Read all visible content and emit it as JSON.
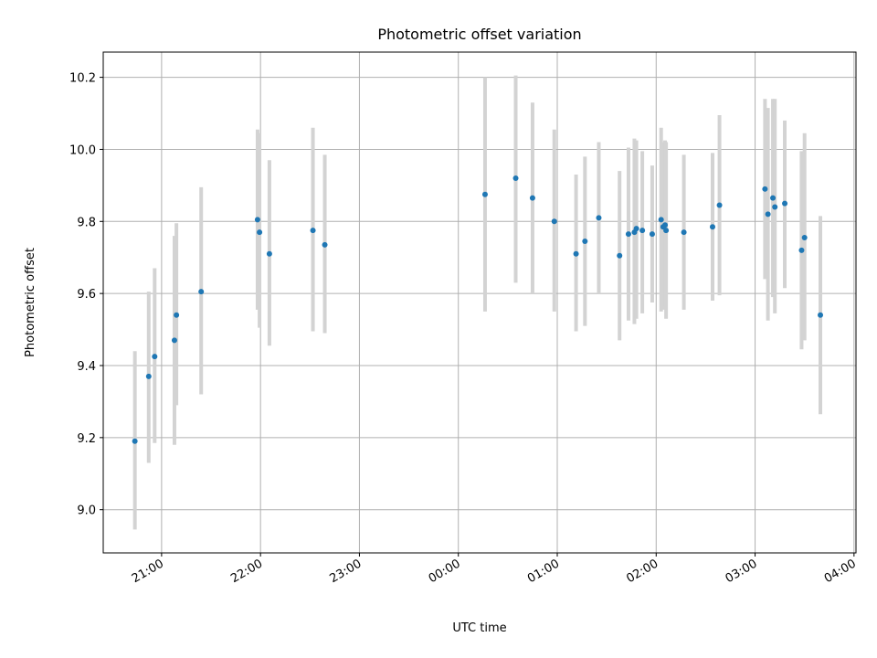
{
  "chart_data": {
    "type": "scatter",
    "title": "Photometric offset variation",
    "xlabel": "UTC time",
    "ylabel": "Photometric offset",
    "x_unit": "hours",
    "x_tick_labels": [
      "21:00",
      "22:00",
      "23:00",
      "00:00",
      "01:00",
      "02:00",
      "03:00",
      "04:00"
    ],
    "x_tick_values": [
      21,
      22,
      23,
      24,
      25,
      26,
      27,
      28
    ],
    "xlim": [
      20.41,
      28.02
    ],
    "y_tick_values": [
      9.0,
      9.2,
      9.4,
      9.6,
      9.8,
      10.0,
      10.2
    ],
    "ylim": [
      8.88,
      10.27
    ],
    "grid": true,
    "marker_color": "#1f77b4",
    "errorbar_color": "#d3d3d3",
    "points": [
      {
        "x": 20.73,
        "y": 9.19,
        "yerr_low": 8.945,
        "yerr_high": 9.44
      },
      {
        "x": 20.87,
        "y": 9.37,
        "yerr_low": 9.13,
        "yerr_high": 9.605
      },
      {
        "x": 20.93,
        "y": 9.425,
        "yerr_low": 9.185,
        "yerr_high": 9.67
      },
      {
        "x": 21.13,
        "y": 9.47,
        "yerr_low": 9.18,
        "yerr_high": 9.76
      },
      {
        "x": 21.15,
        "y": 9.54,
        "yerr_low": 9.29,
        "yerr_high": 9.795
      },
      {
        "x": 21.4,
        "y": 9.605,
        "yerr_low": 9.32,
        "yerr_high": 9.895
      },
      {
        "x": 21.97,
        "y": 9.805,
        "yerr_low": 9.555,
        "yerr_high": 10.055
      },
      {
        "x": 21.99,
        "y": 9.77,
        "yerr_low": 9.505,
        "yerr_high": 10.045
      },
      {
        "x": 22.09,
        "y": 9.71,
        "yerr_low": 9.455,
        "yerr_high": 9.97
      },
      {
        "x": 22.53,
        "y": 9.775,
        "yerr_low": 9.495,
        "yerr_high": 10.06
      },
      {
        "x": 22.65,
        "y": 9.735,
        "yerr_low": 9.49,
        "yerr_high": 9.985
      },
      {
        "x": 24.27,
        "y": 9.875,
        "yerr_low": 9.55,
        "yerr_high": 10.2
      },
      {
        "x": 24.58,
        "y": 9.92,
        "yerr_low": 9.63,
        "yerr_high": 10.205
      },
      {
        "x": 24.75,
        "y": 9.865,
        "yerr_low": 9.6,
        "yerr_high": 10.13
      },
      {
        "x": 24.97,
        "y": 9.8,
        "yerr_low": 9.55,
        "yerr_high": 10.055
      },
      {
        "x": 25.19,
        "y": 9.71,
        "yerr_low": 9.495,
        "yerr_high": 9.93
      },
      {
        "x": 25.28,
        "y": 9.745,
        "yerr_low": 9.51,
        "yerr_high": 9.98
      },
      {
        "x": 25.42,
        "y": 9.81,
        "yerr_low": 9.6,
        "yerr_high": 10.02
      },
      {
        "x": 25.63,
        "y": 9.705,
        "yerr_low": 9.47,
        "yerr_high": 9.94
      },
      {
        "x": 25.72,
        "y": 9.765,
        "yerr_low": 9.525,
        "yerr_high": 10.005
      },
      {
        "x": 25.78,
        "y": 9.77,
        "yerr_low": 9.515,
        "yerr_high": 10.03
      },
      {
        "x": 25.8,
        "y": 9.78,
        "yerr_low": 9.53,
        "yerr_high": 10.025
      },
      {
        "x": 25.86,
        "y": 9.775,
        "yerr_low": 9.545,
        "yerr_high": 9.995
      },
      {
        "x": 25.96,
        "y": 9.765,
        "yerr_low": 9.575,
        "yerr_high": 9.955
      },
      {
        "x": 26.05,
        "y": 9.805,
        "yerr_low": 9.55,
        "yerr_high": 10.06
      },
      {
        "x": 26.07,
        "y": 9.785,
        "yerr_low": 9.555,
        "yerr_high": 10.02
      },
      {
        "x": 26.09,
        "y": 9.79,
        "yerr_low": 9.565,
        "yerr_high": 10.025
      },
      {
        "x": 26.1,
        "y": 9.775,
        "yerr_low": 9.53,
        "yerr_high": 10.02
      },
      {
        "x": 26.28,
        "y": 9.77,
        "yerr_low": 9.555,
        "yerr_high": 9.985
      },
      {
        "x": 26.57,
        "y": 9.785,
        "yerr_low": 9.58,
        "yerr_high": 9.99
      },
      {
        "x": 26.64,
        "y": 9.845,
        "yerr_low": 9.595,
        "yerr_high": 10.095
      },
      {
        "x": 27.1,
        "y": 9.89,
        "yerr_low": 9.64,
        "yerr_high": 10.14
      },
      {
        "x": 27.13,
        "y": 9.82,
        "yerr_low": 9.525,
        "yerr_high": 10.115
      },
      {
        "x": 27.18,
        "y": 9.865,
        "yerr_low": 9.59,
        "yerr_high": 10.14
      },
      {
        "x": 27.2,
        "y": 9.84,
        "yerr_low": 9.545,
        "yerr_high": 10.14
      },
      {
        "x": 27.3,
        "y": 9.85,
        "yerr_low": 9.615,
        "yerr_high": 10.08
      },
      {
        "x": 27.47,
        "y": 9.72,
        "yerr_low": 9.445,
        "yerr_high": 9.995
      },
      {
        "x": 27.5,
        "y": 9.755,
        "yerr_low": 9.47,
        "yerr_high": 10.045
      },
      {
        "x": 27.66,
        "y": 9.54,
        "yerr_low": 9.265,
        "yerr_high": 9.815
      }
    ]
  }
}
